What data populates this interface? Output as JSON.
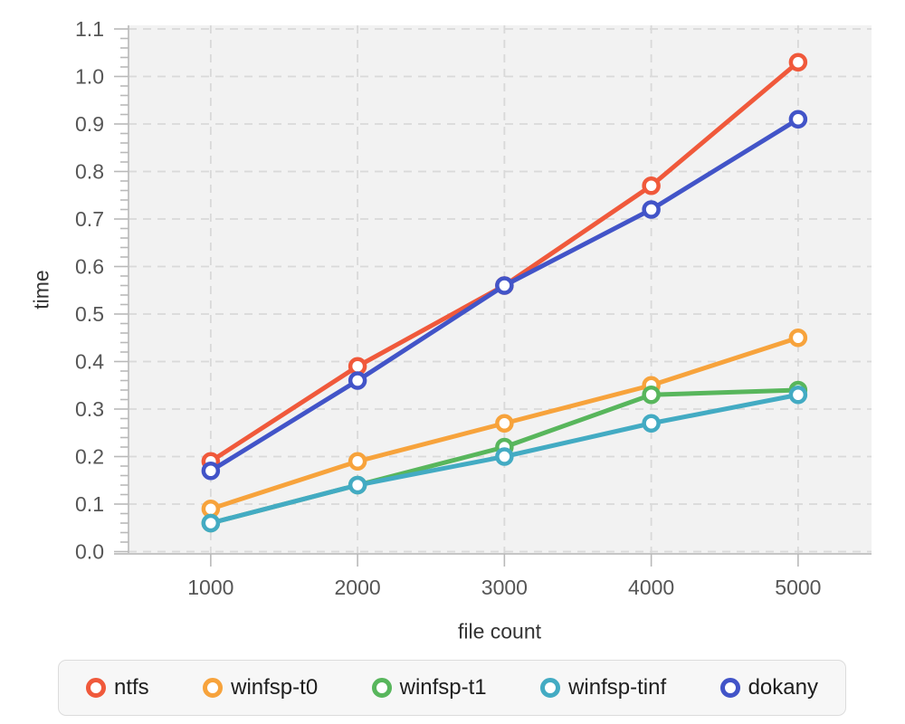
{
  "chart_data": {
    "type": "line",
    "title": "",
    "xlabel": "file count",
    "ylabel": "time",
    "x": [
      1000,
      2000,
      3000,
      4000,
      5000
    ],
    "xticks": [
      1000,
      2000,
      3000,
      4000,
      5000
    ],
    "yticks": [
      0.0,
      0.1,
      0.2,
      0.3,
      0.4,
      0.5,
      0.6,
      0.7,
      0.8,
      0.9,
      1.0,
      1.1
    ],
    "y_minor_step": 0.02,
    "xlim": [
      440,
      5500
    ],
    "ylim": [
      0,
      1.1
    ],
    "grid": "dashed",
    "legend_position": "bottom",
    "plot_background": "#f2f2f2",
    "grid_color": "#d9d9d9",
    "axis_color": "#c5c5c5",
    "tick_color": "#b9b9b9",
    "tick_label_color": "#565656",
    "axis_title_color": "#333333",
    "series": [
      {
        "name": "ntfs",
        "color": "#f0593b",
        "values": [
          0.19,
          0.39,
          0.56,
          0.77,
          1.03
        ]
      },
      {
        "name": "winfsp-t0",
        "color": "#f7a33c",
        "values": [
          0.09,
          0.19,
          0.27,
          0.35,
          0.45
        ]
      },
      {
        "name": "winfsp-t1",
        "color": "#58b65c",
        "values": [
          0.06,
          0.14,
          0.22,
          0.33,
          0.34
        ]
      },
      {
        "name": "winfsp-tinf",
        "color": "#43abc3",
        "values": [
          0.06,
          0.14,
          0.2,
          0.27,
          0.33
        ]
      },
      {
        "name": "dokany",
        "color": "#4254c8",
        "values": [
          0.17,
          0.36,
          0.56,
          0.72,
          0.91
        ]
      }
    ]
  }
}
